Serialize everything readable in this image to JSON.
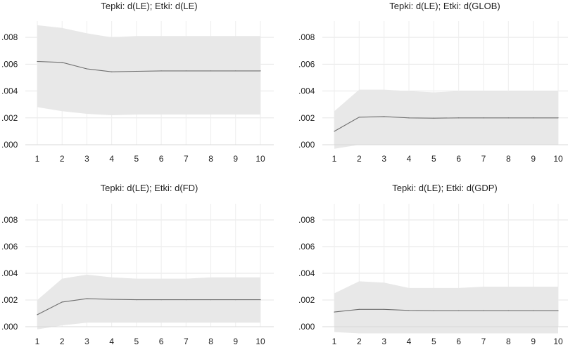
{
  "chart_data": [
    {
      "type": "area",
      "title": "Tepki: d(LE); Etki: d(LE)",
      "x": [
        1,
        2,
        3,
        4,
        5,
        6,
        7,
        8,
        9,
        10
      ],
      "x_tick_labels": [
        "1",
        "2",
        "3",
        "4",
        "5",
        "6",
        "7",
        "8",
        "9",
        "10"
      ],
      "y_tick_labels": [
        ".000",
        ".002",
        ".004",
        ".006",
        ".008"
      ],
      "ylim": [
        0,
        0.009
      ],
      "series": [
        {
          "role": "response",
          "values": [
            0.0062,
            0.00613,
            0.00565,
            0.00543,
            0.00547,
            0.0055,
            0.0055,
            0.0055,
            0.0055,
            0.0055
          ]
        }
      ],
      "band_upper": [
        0.0089,
        0.0087,
        0.0083,
        0.008,
        0.0081,
        0.0081,
        0.0081,
        0.0081,
        0.0081,
        0.0081
      ],
      "band_lower": [
        0.0028,
        0.0025,
        0.0023,
        0.0022,
        0.00225,
        0.00225,
        0.00225,
        0.00225,
        0.00225,
        0.00225
      ],
      "grid": true
    },
    {
      "type": "area",
      "title": "Tepki: d(LE); Etki: d(GLOB)",
      "x": [
        1,
        2,
        3,
        4,
        5,
        6,
        7,
        8,
        9,
        10
      ],
      "x_tick_labels": [
        "1",
        "2",
        "3",
        "4",
        "5",
        "6",
        "7",
        "8",
        "9",
        "10"
      ],
      "y_tick_labels": [
        ".000",
        ".002",
        ".004",
        ".006",
        ".008"
      ],
      "ylim": [
        0,
        0.009
      ],
      "series": [
        {
          "role": "response",
          "values": [
            0.001,
            0.00205,
            0.0021,
            0.002,
            0.00198,
            0.002,
            0.002,
            0.002,
            0.002,
            0.002
          ]
        }
      ],
      "band_upper": [
        0.0025,
        0.0041,
        0.0041,
        0.004,
        0.0039,
        0.004,
        0.004,
        0.004,
        0.004,
        0.004
      ],
      "band_lower": [
        -0.0003,
        0.0,
        0.0,
        0.0,
        0.0,
        0.0,
        0.0,
        0.0,
        0.0,
        0.0
      ],
      "grid": true
    },
    {
      "type": "area",
      "title": "Tepki: d(LE); Etki: d(FD)",
      "x": [
        1,
        2,
        3,
        4,
        5,
        6,
        7,
        8,
        9,
        10
      ],
      "x_tick_labels": [
        "1",
        "2",
        "3",
        "4",
        "5",
        "6",
        "7",
        "8",
        "9",
        "10"
      ],
      "y_tick_labels": [
        ".000",
        ".002",
        ".004",
        ".006",
        ".008"
      ],
      "ylim": [
        0,
        0.009
      ],
      "series": [
        {
          "role": "response",
          "values": [
            0.0009,
            0.00185,
            0.0021,
            0.00205,
            0.00202,
            0.00202,
            0.00202,
            0.00202,
            0.00202,
            0.00202
          ]
        }
      ],
      "band_upper": [
        0.002,
        0.0036,
        0.0039,
        0.0037,
        0.0036,
        0.0036,
        0.0036,
        0.0037,
        0.0037,
        0.0037
      ],
      "band_lower": [
        -0.0002,
        0.0001,
        0.0003,
        0.0003,
        0.0003,
        0.0003,
        0.0003,
        0.0003,
        0.0003,
        0.0003
      ],
      "grid": true
    },
    {
      "type": "area",
      "title": "Tepki: d(LE); Etki: d(GDP)",
      "x": [
        1,
        2,
        3,
        4,
        5,
        6,
        7,
        8,
        9,
        10
      ],
      "x_tick_labels": [
        "1",
        "2",
        "3",
        "4",
        "5",
        "6",
        "7",
        "8",
        "9",
        "10"
      ],
      "y_tick_labels": [
        ".000",
        ".002",
        ".004",
        ".006",
        ".008"
      ],
      "ylim": [
        0,
        0.009
      ],
      "series": [
        {
          "role": "response",
          "values": [
            0.0011,
            0.0013,
            0.0013,
            0.00122,
            0.0012,
            0.0012,
            0.0012,
            0.0012,
            0.0012,
            0.0012
          ]
        }
      ],
      "band_upper": [
        0.0025,
        0.0034,
        0.0033,
        0.0029,
        0.0029,
        0.0029,
        0.003,
        0.003,
        0.003,
        0.003
      ],
      "band_lower": [
        -0.0004,
        -0.0005,
        -0.0005,
        -0.0005,
        -0.0005,
        -0.0005,
        -0.0005,
        -0.0005,
        -0.0005,
        -0.0005
      ],
      "grid": true
    }
  ]
}
